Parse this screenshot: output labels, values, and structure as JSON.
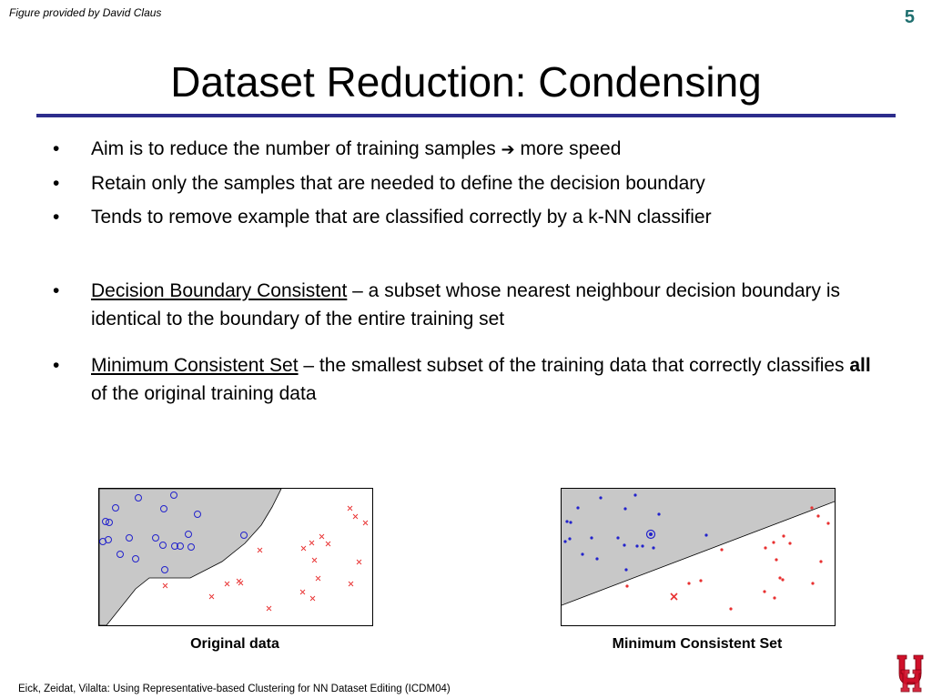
{
  "credit": "Figure provided by David Claus",
  "slide_number": "5",
  "title": "Dataset Reduction: Condensing",
  "bullets": [
    {
      "text": "Aim is to reduce the number of training samples ",
      "arrow": "➔",
      "tail": " more speed"
    },
    {
      "text": "Retain only the samples that are needed to define the decision boundary"
    },
    {
      "text": "Tends to remove example that are classified correctly by a k-NN classifier"
    },
    {
      "term": "Decision Boundary Consistent",
      "text": " – a subset whose nearest neighbour decision boundary is identical to the boundary of the entire training set"
    },
    {
      "term": "Minimum Consistent Set",
      "text_before": " – the smallest subset of the training data that correctly classifies ",
      "bold": "all",
      "text_after": " of the original training data"
    }
  ],
  "bullet_glyph": "•",
  "figures": {
    "original": {
      "caption": "Original data"
    },
    "mcs": {
      "caption": "Minimum Consistent Set"
    }
  },
  "citation": "Eick, Zeidat, Vilalta: Using Representative-based Clustering for NN Dataset Editing (ICDM04)",
  "colors": {
    "title_rule": "#2d2d8c",
    "class_a": "#2222cc",
    "class_b": "#e83030",
    "region": "#c8c8c8",
    "slide_number": "#1f6f6f"
  }
}
